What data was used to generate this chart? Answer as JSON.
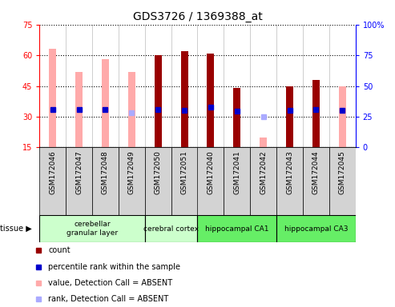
{
  "title": "GDS3726 / 1369388_at",
  "samples": [
    "GSM172046",
    "GSM172047",
    "GSM172048",
    "GSM172049",
    "GSM172050",
    "GSM172051",
    "GSM172040",
    "GSM172041",
    "GSM172042",
    "GSM172043",
    "GSM172044",
    "GSM172045"
  ],
  "count_values": [
    null,
    null,
    null,
    null,
    60,
    62,
    61,
    44,
    null,
    45,
    48,
    null
  ],
  "count_absent_values": [
    63,
    52,
    58,
    52,
    null,
    null,
    null,
    null,
    20,
    null,
    null,
    45
  ],
  "rank_values": [
    31,
    30.5,
    31,
    null,
    30.5,
    30,
    33,
    29.5,
    null,
    30,
    31,
    30
  ],
  "rank_absent_values": [
    null,
    null,
    null,
    28.5,
    null,
    null,
    null,
    null,
    25,
    null,
    null,
    null
  ],
  "ylim_left": [
    15,
    75
  ],
  "ylim_right": [
    0,
    100
  ],
  "yticks_left": [
    15,
    30,
    45,
    60,
    75
  ],
  "yticks_right": [
    0,
    25,
    50,
    75,
    100
  ],
  "count_color": "#990000",
  "count_absent_color": "#ffaaaa",
  "rank_color": "#0000cc",
  "rank_absent_color": "#aaaaff",
  "tissue_groups": [
    {
      "label": "cerebellar\ngranular layer",
      "cols": [
        0,
        1,
        2,
        3
      ],
      "color": "#ccffcc"
    },
    {
      "label": "cerebral cortex",
      "cols": [
        4,
        5
      ],
      "color": "#ccffcc"
    },
    {
      "label": "hippocampal CA1",
      "cols": [
        6,
        7,
        8
      ],
      "color": "#66ee66"
    },
    {
      "label": "hippocampal CA3",
      "cols": [
        9,
        10,
        11
      ],
      "color": "#66ee66"
    }
  ],
  "legend_items": [
    {
      "color": "#990000",
      "label": "count"
    },
    {
      "color": "#0000cc",
      "label": "percentile rank within the sample"
    },
    {
      "color": "#ffaaaa",
      "label": "value, Detection Call = ABSENT"
    },
    {
      "color": "#aaaaff",
      "label": "rank, Detection Call = ABSENT"
    }
  ]
}
